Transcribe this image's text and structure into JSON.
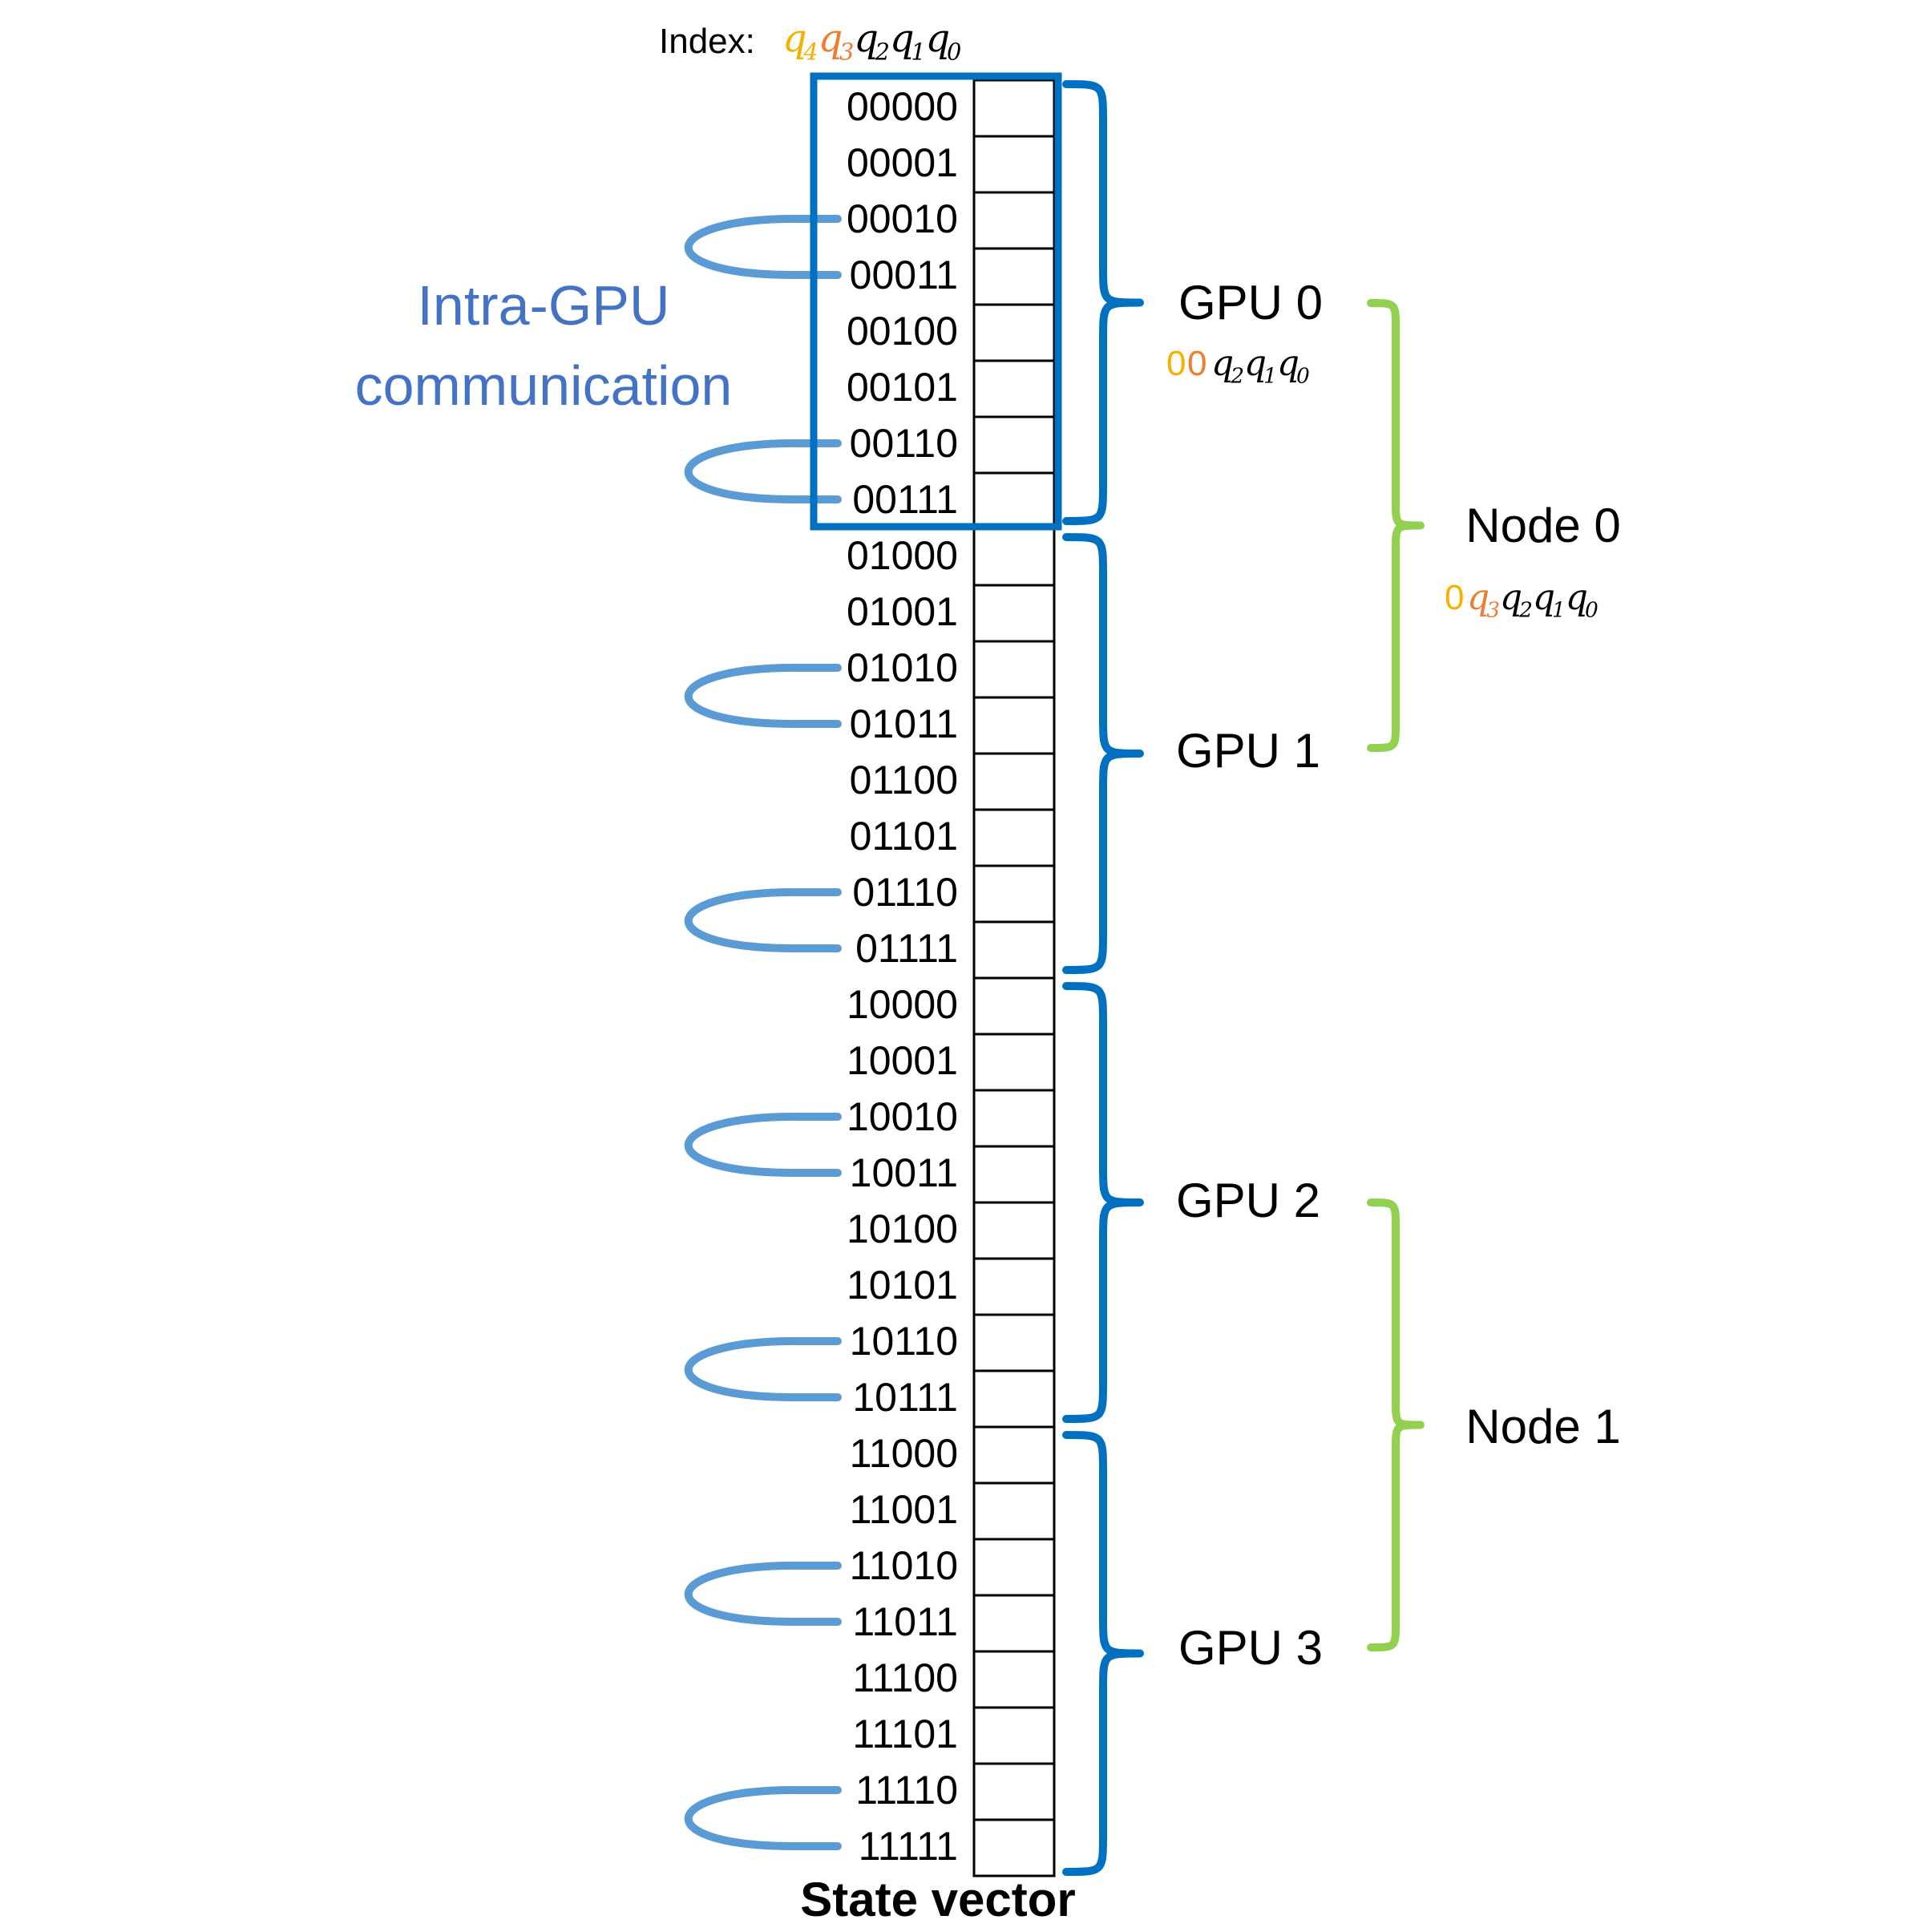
{
  "index_header": {
    "label": "Index: ",
    "bits": [
      {
        "sym": "q",
        "sub": "4",
        "color": "#F5B000"
      },
      {
        "sym": "q",
        "sub": "3",
        "color": "#ED7D31"
      },
      {
        "sym": "q",
        "sub": "2",
        "color": "#000000"
      },
      {
        "sym": "q",
        "sub": "1",
        "color": "#000000"
      },
      {
        "sym": "q",
        "sub": "0",
        "color": "#000000"
      }
    ]
  },
  "rows": [
    "00000",
    "00001",
    "00010",
    "00011",
    "00100",
    "00101",
    "00110",
    "00111",
    "01000",
    "01001",
    "01010",
    "01011",
    "01100",
    "01101",
    "01110",
    "01111",
    "10000",
    "10001",
    "10010",
    "10011",
    "10100",
    "10101",
    "10110",
    "10111",
    "11000",
    "11001",
    "11010",
    "11011",
    "11100",
    "11101",
    "11110",
    "11111"
  ],
  "intra_label": {
    "line1": "Intra-GPU",
    "line2": "communication"
  },
  "gpus": [
    {
      "label": "GPU 0",
      "sublabel": {
        "prefix": [
          {
            "text": "0",
            "color": "#F5B000"
          },
          {
            "text": "0",
            "color": "#ED7D31"
          }
        ],
        "bits": [
          "2",
          "1",
          "0"
        ]
      }
    },
    {
      "label": "GPU 1"
    },
    {
      "label": "GPU 2"
    },
    {
      "label": "GPU 3"
    }
  ],
  "nodes": [
    {
      "label": "Node 0",
      "sublabel": {
        "prefix": [
          {
            "text": "0",
            "color": "#F5B000"
          }
        ],
        "colored_q": {
          "sub": "3",
          "color": "#ED7D31"
        },
        "bits": [
          "2",
          "1",
          "0"
        ]
      }
    },
    {
      "label": "Node 1"
    }
  ],
  "footer": "State vector",
  "colors": {
    "gpu_brace": "#0070C0",
    "node_brace": "#92D050",
    "loop": "#5B9BD5",
    "intra_text": "#4472C4",
    "highlight_box": "#0070C0",
    "q4": "#F5B000",
    "q3": "#ED7D31"
  }
}
